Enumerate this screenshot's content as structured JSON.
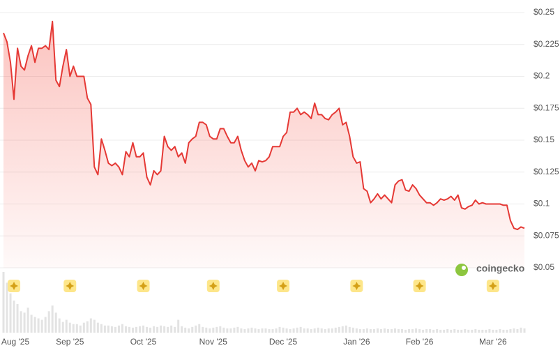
{
  "chart_data": {
    "type": "area",
    "color": "#e53935",
    "watermark": "coingecko",
    "ylim": [
      0.05,
      0.25
    ],
    "yticks": [
      {
        "value": 0.25,
        "label": "$0.25"
      },
      {
        "value": 0.225,
        "label": "$0.225"
      },
      {
        "value": 0.2,
        "label": "$0.2"
      },
      {
        "value": 0.175,
        "label": "$0.175"
      },
      {
        "value": 0.15,
        "label": "$0.15"
      },
      {
        "value": 0.125,
        "label": "$0.125"
      },
      {
        "value": 0.1,
        "label": "$0.1"
      },
      {
        "value": 0.075,
        "label": "$0.075"
      },
      {
        "value": 0.05,
        "label": "$0.05"
      }
    ],
    "xticks": [
      {
        "value": 3,
        "label": "Aug '25"
      },
      {
        "value": 19,
        "label": "Sep '25"
      },
      {
        "value": 40,
        "label": "Oct '25"
      },
      {
        "value": 60,
        "label": "Nov '25"
      },
      {
        "value": 80,
        "label": "Dec '25"
      },
      {
        "value": 101,
        "label": "Jan '26"
      },
      {
        "value": 119,
        "label": "Feb '26"
      },
      {
        "value": 140,
        "label": "Mar '26"
      }
    ],
    "grid": true,
    "values": [
      0.234,
      0.227,
      0.211,
      0.182,
      0.222,
      0.208,
      0.205,
      0.216,
      0.224,
      0.211,
      0.222,
      0.222,
      0.224,
      0.221,
      0.243,
      0.197,
      0.192,
      0.208,
      0.221,
      0.2,
      0.208,
      0.2,
      0.2,
      0.2,
      0.183,
      0.178,
      0.129,
      0.123,
      0.151,
      0.142,
      0.132,
      0.13,
      0.132,
      0.129,
      0.123,
      0.141,
      0.137,
      0.148,
      0.137,
      0.137,
      0.14,
      0.121,
      0.115,
      0.126,
      0.123,
      0.126,
      0.153,
      0.145,
      0.142,
      0.145,
      0.137,
      0.14,
      0.132,
      0.148,
      0.151,
      0.153,
      0.164,
      0.164,
      0.162,
      0.153,
      0.151,
      0.151,
      0.159,
      0.159,
      0.153,
      0.148,
      0.148,
      0.153,
      0.142,
      0.134,
      0.129,
      0.132,
      0.126,
      0.134,
      0.133,
      0.134,
      0.137,
      0.145,
      0.145,
      0.145,
      0.153,
      0.156,
      0.172,
      0.172,
      0.175,
      0.17,
      0.172,
      0.17,
      0.167,
      0.179,
      0.17,
      0.17,
      0.167,
      0.166,
      0.17,
      0.172,
      0.175,
      0.162,
      0.164,
      0.153,
      0.137,
      0.132,
      0.133,
      0.112,
      0.11,
      0.101,
      0.104,
      0.108,
      0.104,
      0.107,
      0.104,
      0.101,
      0.115,
      0.118,
      0.119,
      0.111,
      0.11,
      0.115,
      0.112,
      0.107,
      0.104,
      0.101,
      0.101,
      0.099,
      0.101,
      0.104,
      0.103,
      0.104,
      0.106,
      0.103,
      0.107,
      0.097,
      0.096,
      0.098,
      0.099,
      0.103,
      0.1,
      0.101,
      0.1,
      0.1,
      0.1,
      0.1,
      0.1,
      0.099,
      0.099,
      0.087,
      0.081,
      0.08,
      0.082,
      0.081
    ],
    "volume": [
      85,
      70,
      55,
      45,
      40,
      30,
      28,
      35,
      25,
      22,
      20,
      18,
      22,
      30,
      38,
      28,
      20,
      15,
      18,
      14,
      12,
      12,
      10,
      14,
      16,
      20,
      18,
      14,
      12,
      10,
      10,
      9,
      8,
      10,
      12,
      9,
      8,
      7,
      8,
      9,
      10,
      8,
      7,
      9,
      8,
      10,
      9,
      8,
      10,
      8,
      18,
      9,
      7,
      6,
      8,
      10,
      12,
      8,
      7,
      6,
      7,
      8,
      9,
      7,
      6,
      6,
      7,
      8,
      6,
      5,
      6,
      7,
      6,
      5,
      6,
      6,
      5,
      5,
      6,
      8,
      7,
      6,
      5,
      6,
      7,
      8,
      6,
      6,
      5,
      6,
      7,
      6,
      5,
      6,
      6,
      7,
      8,
      9,
      10,
      8,
      7,
      6,
      5,
      5,
      6,
      5,
      5,
      6,
      5,
      6,
      5,
      5,
      6,
      5,
      5,
      4,
      5,
      5,
      6,
      5,
      4,
      5,
      5,
      4,
      5,
      4,
      4,
      5,
      4,
      5,
      4,
      4,
      5,
      4,
      4,
      5,
      4,
      4,
      4,
      5,
      4,
      4,
      5,
      4,
      4,
      5,
      6,
      5,
      7,
      6
    ]
  }
}
